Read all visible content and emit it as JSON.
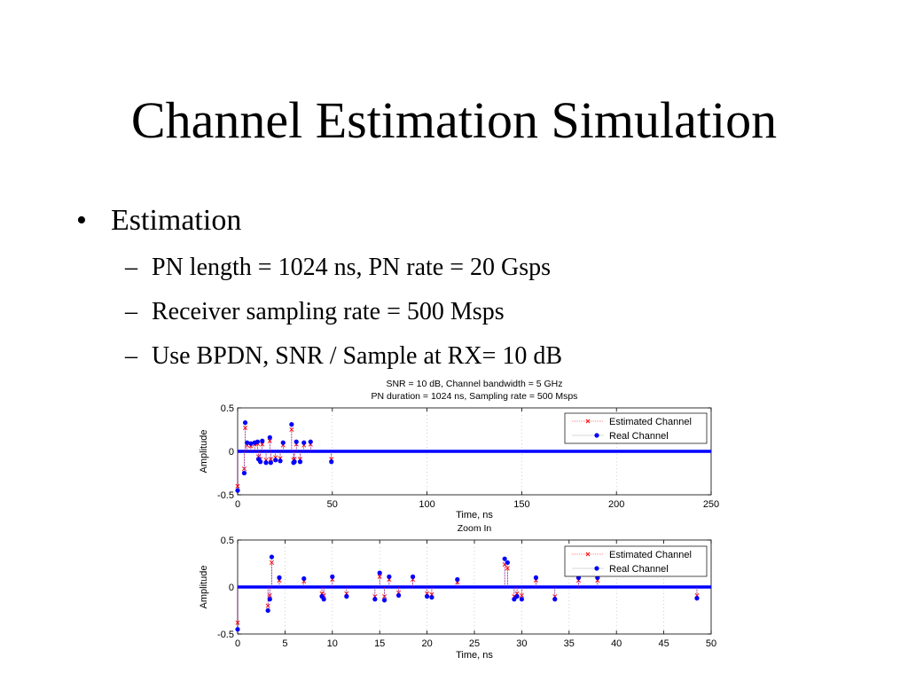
{
  "slide": {
    "title": "Channel Estimation Simulation",
    "bullet": "Estimation",
    "bullet_marker": "•",
    "sub_marker": "–",
    "sub_bullets": [
      "PN length = 1024 ns, PN rate = 20 Gsps",
      "Receiver sampling rate = 500 Msps",
      "Use  BPDN, SNR / Sample at RX= 10 dB"
    ]
  },
  "colors": {
    "estimated": "#ff0000",
    "real": "#0000ff",
    "grid": "#b0b0b0",
    "axis": "#000000"
  },
  "chart_data": [
    {
      "type": "stem",
      "title": [
        "SNR = 10 dB, Channel bandwidth = 5 GHz",
        "PN duration = 1024 ns, Sampling rate = 500 Msps"
      ],
      "xlabel": "Time, ns",
      "ylabel": "Amplitude",
      "xlim": [
        0,
        250
      ],
      "ylim": [
        -0.5,
        0.5
      ],
      "xticks": [
        0,
        50,
        100,
        150,
        200,
        250
      ],
      "yticks": [
        -0.5,
        0,
        0.5
      ],
      "ytick_labels": [
        "-0.5",
        "0",
        "0.5"
      ],
      "grid": true,
      "legend": {
        "position": "top-right",
        "entries": [
          "Estimated Channel",
          "Real Channel"
        ]
      },
      "series": [
        {
          "name": "Real Channel",
          "marker": "dot",
          "x": [
            0,
            3.5,
            4,
            5,
            7,
            9,
            10.5,
            11,
            12,
            13,
            15,
            17,
            17.5,
            20,
            22.5,
            24,
            28.5,
            29.5,
            30,
            31,
            33,
            35,
            38.5,
            49.5
          ],
          "y": [
            -0.45,
            -0.25,
            0.33,
            0.1,
            0.09,
            0.1,
            0.11,
            -0.09,
            -0.12,
            0.12,
            -0.13,
            0.16,
            -0.13,
            -0.1,
            -0.11,
            0.1,
            0.31,
            -0.13,
            -0.12,
            0.11,
            -0.12,
            0.1,
            0.11,
            -0.12
          ]
        },
        {
          "name": "Estimated Channel",
          "marker": "x",
          "x": [
            0,
            3.5,
            4,
            5,
            7,
            9,
            10.5,
            11,
            12,
            13,
            15,
            17,
            17.5,
            20,
            22.5,
            24,
            28.5,
            29.5,
            30,
            31,
            33,
            35,
            38.5,
            49.5
          ],
          "y": [
            -0.4,
            -0.2,
            0.27,
            0.07,
            0.06,
            0.08,
            0.09,
            -0.06,
            -0.09,
            0.08,
            -0.1,
            0.12,
            -0.09,
            -0.07,
            -0.08,
            0.07,
            0.25,
            -0.1,
            -0.09,
            0.08,
            -0.09,
            0.07,
            0.08,
            -0.09
          ]
        }
      ]
    },
    {
      "type": "stem",
      "title": [
        "Zoom In"
      ],
      "xlabel": "Time, ns",
      "ylabel": "Amplitude",
      "xlim": [
        0,
        50
      ],
      "ylim": [
        -0.5,
        0.5
      ],
      "xticks": [
        0,
        5,
        10,
        15,
        20,
        25,
        30,
        35,
        40,
        45,
        50
      ],
      "yticks": [
        -0.5,
        0,
        0.5
      ],
      "ytick_labels": [
        "-0.5",
        "0",
        "0.5"
      ],
      "grid": true,
      "legend": {
        "position": "top-right",
        "entries": [
          "Estimated Channel",
          "Real Channel"
        ]
      },
      "series": [
        {
          "name": "Real Channel",
          "marker": "dot",
          "x": [
            0,
            3.2,
            3.4,
            3.6,
            4.4,
            7,
            8.9,
            9.1,
            10,
            11.5,
            14.5,
            15,
            15.5,
            16,
            17,
            18.5,
            20,
            20.5,
            23.2,
            28.2,
            28.5,
            29.2,
            29.5,
            30,
            31.5,
            33.5,
            36,
            38,
            48.5
          ],
          "y": [
            -0.45,
            -0.25,
            -0.13,
            0.32,
            0.1,
            0.09,
            -0.1,
            -0.13,
            0.11,
            -0.1,
            -0.13,
            0.15,
            -0.14,
            0.11,
            -0.09,
            0.11,
            -0.1,
            -0.11,
            0.08,
            0.3,
            0.26,
            -0.13,
            -0.1,
            -0.13,
            0.1,
            -0.13,
            0.1,
            0.1,
            -0.12
          ]
        },
        {
          "name": "Estimated Channel",
          "marker": "x",
          "x": [
            0,
            3.2,
            3.4,
            3.6,
            4.4,
            7,
            8.9,
            9.1,
            10,
            11.5,
            14.5,
            15,
            15.5,
            16,
            17,
            18.5,
            20,
            20.5,
            23.2,
            28.2,
            28.5,
            29.2,
            29.5,
            30,
            31.5,
            33.5,
            36,
            38,
            48.5
          ],
          "y": [
            -0.38,
            -0.2,
            -0.09,
            0.26,
            0.07,
            0.06,
            -0.07,
            -0.09,
            0.08,
            -0.07,
            -0.1,
            0.11,
            -0.1,
            0.08,
            -0.06,
            0.08,
            -0.07,
            -0.08,
            0.05,
            0.24,
            0.2,
            -0.1,
            -0.07,
            -0.09,
            0.07,
            -0.1,
            0.07,
            0.07,
            -0.09
          ]
        }
      ]
    }
  ]
}
